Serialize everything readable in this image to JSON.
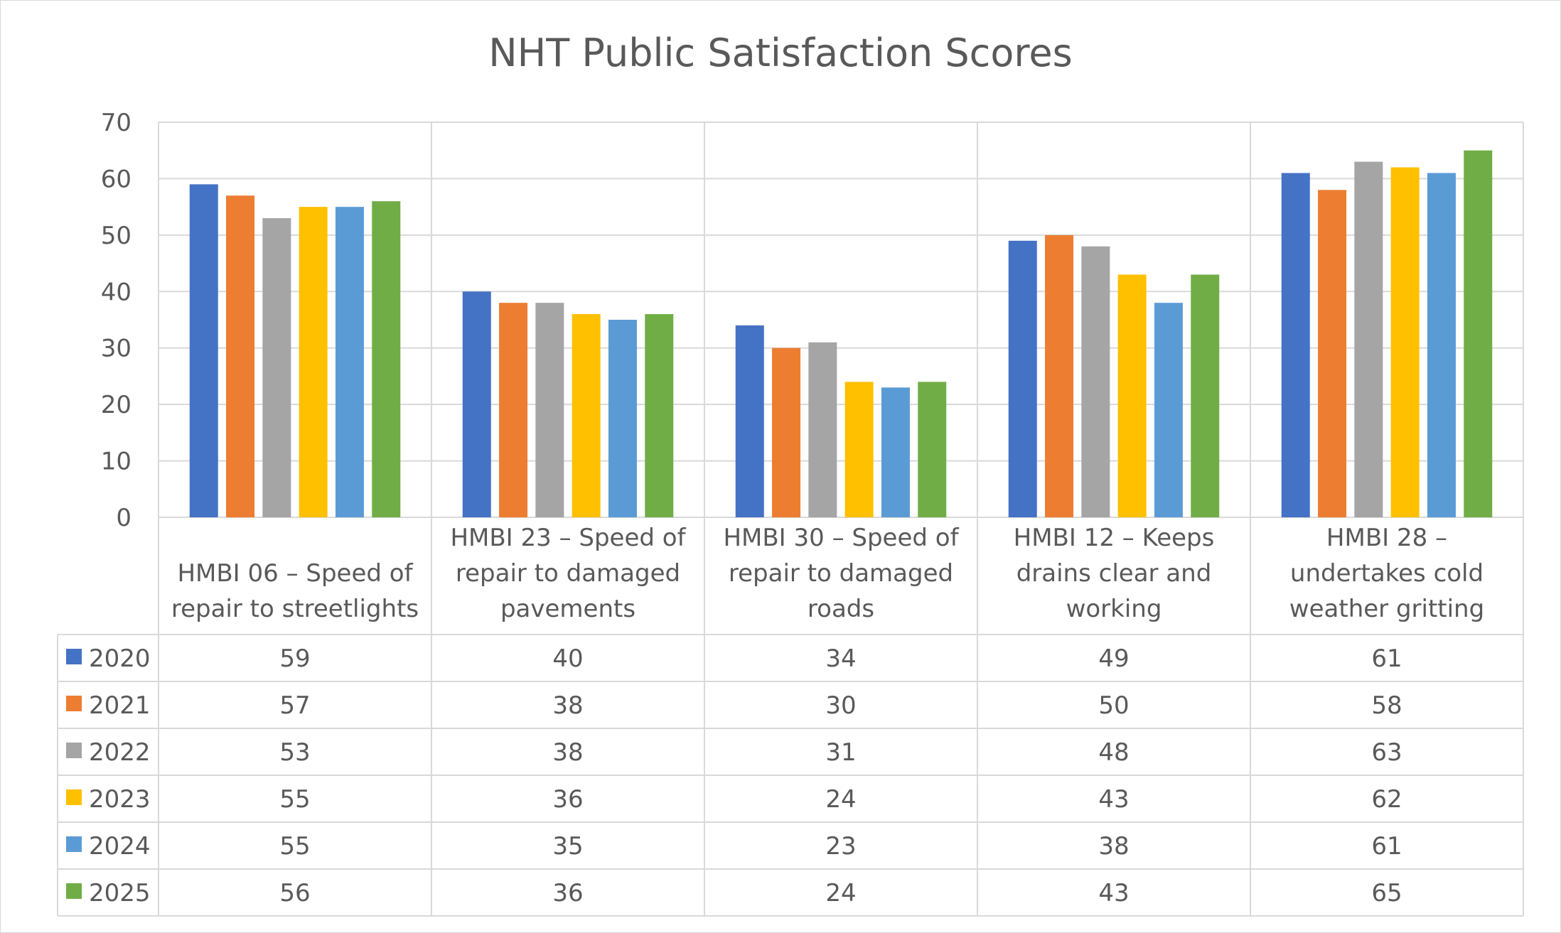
{
  "chart_data": {
    "type": "bar",
    "title": "NHT Public Satisfaction Scores",
    "categories": [
      [
        "HMBI 06 – Speed of",
        "repair to streetlights"
      ],
      [
        "HMBI 23 – Speed of",
        "repair to damaged",
        "pavements"
      ],
      [
        "HMBI 30 – Speed of",
        "repair to damaged",
        "roads"
      ],
      [
        "HMBI 12 – Keeps",
        "drains clear and",
        "working"
      ],
      [
        "HMBI 28 –",
        "undertakes cold",
        "weather gritting"
      ]
    ],
    "series": [
      {
        "name": "2020",
        "color": "#4472c4",
        "values": [
          59,
          40,
          34,
          49,
          61
        ]
      },
      {
        "name": "2021",
        "color": "#ed7d31",
        "values": [
          57,
          38,
          30,
          50,
          58
        ]
      },
      {
        "name": "2022",
        "color": "#a5a5a5",
        "values": [
          53,
          38,
          31,
          48,
          63
        ]
      },
      {
        "name": "2023",
        "color": "#ffc000",
        "values": [
          55,
          36,
          24,
          43,
          62
        ]
      },
      {
        "name": "2024",
        "color": "#5b9bd5",
        "values": [
          55,
          35,
          23,
          38,
          61
        ]
      },
      {
        "name": "2025",
        "color": "#70ad47",
        "values": [
          56,
          36,
          24,
          43,
          65
        ]
      }
    ],
    "ylim": [
      0,
      70
    ],
    "yticks": [
      0,
      10,
      20,
      30,
      40,
      50,
      60,
      70
    ],
    "grid": true,
    "legend": "data table below chart"
  }
}
